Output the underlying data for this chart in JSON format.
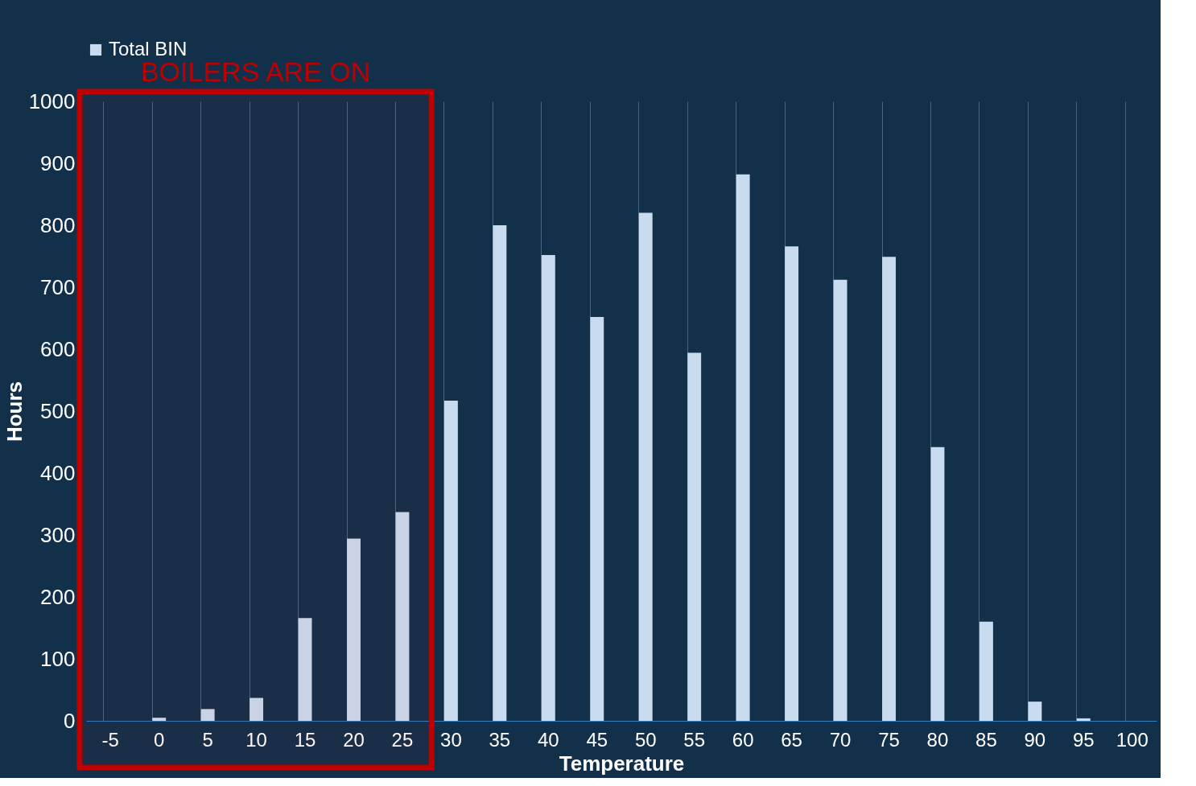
{
  "chart_data": {
    "type": "bar",
    "xlabel": "Temperature",
    "ylabel": "Hours",
    "categories": [
      "-5",
      "0",
      "5",
      "10",
      "15",
      "20",
      "25",
      "30",
      "35",
      "40",
      "45",
      "50",
      "55",
      "60",
      "65",
      "70",
      "75",
      "80",
      "85",
      "90",
      "95",
      "100"
    ],
    "series": [
      {
        "name": "Total BIN",
        "color": "#c9dcef",
        "values": [
          0,
          5,
          19,
          37,
          166,
          294,
          337,
          517,
          800,
          752,
          652,
          820,
          594,
          882,
          766,
          712,
          749,
          442,
          160,
          31,
          4,
          0
        ]
      }
    ],
    "ylim": [
      0,
      1000
    ],
    "yticks": [
      0,
      100,
      200,
      300,
      400,
      500,
      600,
      700,
      800,
      900,
      {
        "value": 1000,
        "label": "1000"
      }
    ],
    "grid": "x",
    "legend": "top",
    "bands": [
      {
        "axis": "x",
        "from": "-5",
        "to": "25",
        "label": "BOILERS ARE ON",
        "color": "#c00000"
      }
    ]
  }
}
